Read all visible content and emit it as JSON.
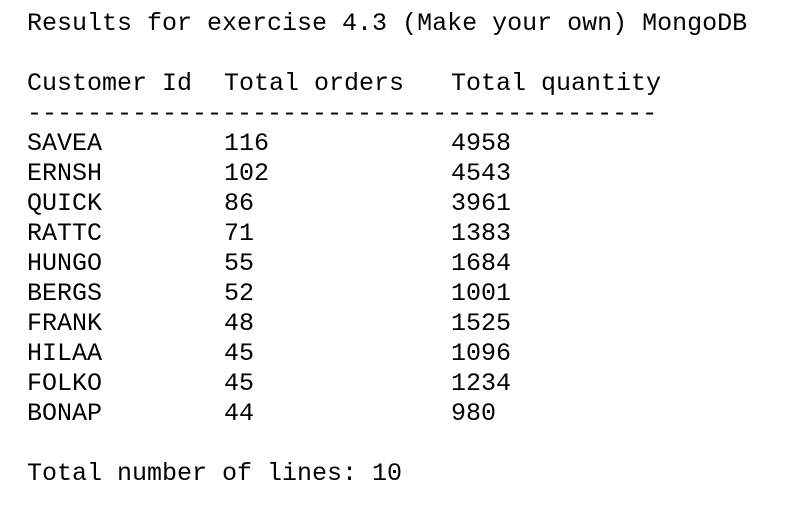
{
  "title": "Results for exercise 4.3 (Make your own) MongoDB",
  "columns": [
    "Customer Id",
    "Total orders",
    "Total quantity"
  ],
  "separator": "------------------------------------------",
  "rows": [
    [
      "SAVEA",
      "116",
      "4958"
    ],
    [
      "ERNSH",
      "102",
      "4543"
    ],
    [
      "QUICK",
      "86",
      "3961"
    ],
    [
      "RATTC",
      "71",
      "1383"
    ],
    [
      "HUNGO",
      "55",
      "1684"
    ],
    [
      "BERGS",
      "52",
      "1001"
    ],
    [
      "FRANK",
      "48",
      "1525"
    ],
    [
      "HILAA",
      "45",
      "1096"
    ],
    [
      "FOLKO",
      "45",
      "1234"
    ],
    [
      "BONAP",
      "44",
      "980"
    ]
  ],
  "footer": "Total number of lines: 10"
}
